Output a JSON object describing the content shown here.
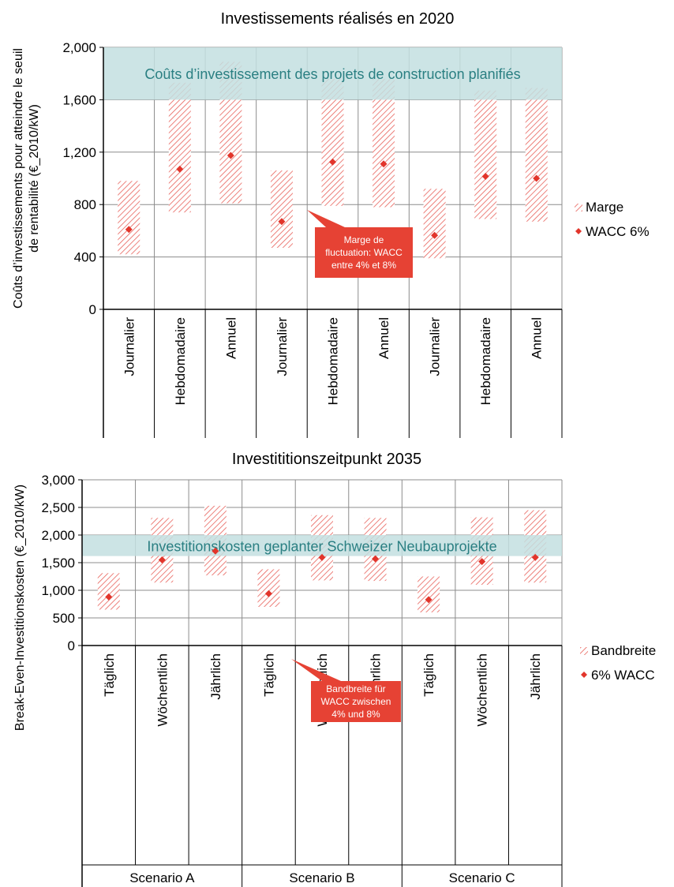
{
  "chart_data": [
    {
      "type": "range",
      "title": "Investissements réalisés en 2020",
      "ylabel_line1": "Coûts d’investissements pour atteindre le seuil",
      "ylabel_line2": "de rentabilité  (€_2010/kW)",
      "ylim": [
        0,
        2000
      ],
      "yticks": [
        0,
        400,
        800,
        1200,
        1600,
        2000
      ],
      "ytick_labels": [
        "0",
        "400",
        "800",
        "1,200",
        "1,600",
        "2,000"
      ],
      "grid": true,
      "categories": [
        "Journalier",
        "Hebdomadaire",
        "Annuel",
        "Journalier",
        "Hebdomadaire",
        "Annuel",
        "Journalier",
        "Hebdomadaire",
        "Annuel"
      ],
      "groups": [],
      "band": {
        "label": "Coûts d’investissement des projets de construction planifiés",
        "from": 1600,
        "to": 2000,
        "color": "#c3dfe0",
        "text_color": "#2a7f82"
      },
      "series": [
        {
          "name": "Marge",
          "kind": "range",
          "low": [
            420,
            740,
            810,
            470,
            790,
            780,
            390,
            690,
            670
          ],
          "high": [
            980,
            1730,
            1890,
            1060,
            1760,
            1760,
            920,
            1670,
            1690
          ]
        },
        {
          "name": "WACC 6%",
          "kind": "point",
          "values": [
            610,
            1070,
            1175,
            670,
            1125,
            1110,
            565,
            1015,
            1000
          ]
        }
      ],
      "annotation": {
        "lines": [
          "Marge de",
          "fluctuation: WACC",
          "entre 4% et 8%"
        ]
      },
      "legend": "right",
      "colors": {
        "hatch": "#e8615a",
        "point": "#e2352b",
        "callout": "#e64234",
        "grid": "#8c8c8c"
      }
    },
    {
      "type": "range",
      "title": "Investititionszeitpunkt 2035",
      "ylabel_line1": "Break-Even-Investitionskosten (€_2010/kW)",
      "ylabel_line2": "",
      "ylim": [
        0,
        3000
      ],
      "yticks": [
        0,
        500,
        1000,
        1500,
        2000,
        2500,
        3000
      ],
      "ytick_labels": [
        "0",
        "500",
        "1,000",
        "1,500",
        "2,000",
        "2,500",
        "3,000"
      ],
      "grid": true,
      "categories": [
        "Täglich",
        "Wöchentlich",
        "Jährlich",
        "Täglich",
        "Wöchentlich",
        "Jährlich",
        "Täglich",
        "Wöchentlich",
        "Jährlich"
      ],
      "groups": [
        "Scenario A",
        "Scenario B",
        "Scenario C"
      ],
      "band": {
        "label": "Investitionskosten geplanter Schweizer Neubauprojekte",
        "from": 1620,
        "to": 2000,
        "color": "#c3dfe0",
        "text_color": "#2a7f82"
      },
      "series": [
        {
          "name": "Bandbreite",
          "kind": "range",
          "low": [
            650,
            1140,
            1270,
            700,
            1180,
            1170,
            600,
            1100,
            1140
          ],
          "high": [
            1310,
            2310,
            2530,
            1380,
            2360,
            2310,
            1250,
            2320,
            2450
          ]
        },
        {
          "name": "6% WACC",
          "kind": "point",
          "values": [
            880,
            1550,
            1710,
            940,
            1595,
            1570,
            830,
            1520,
            1595
          ]
        }
      ],
      "annotation": {
        "lines": [
          "Bandbreite für",
          "WACC zwischen",
          "4% und 8%"
        ]
      },
      "legend": "right",
      "colors": {
        "hatch": "#e8615a",
        "point": "#e2352b",
        "callout": "#e64234",
        "grid": "#8c8c8c"
      }
    }
  ]
}
